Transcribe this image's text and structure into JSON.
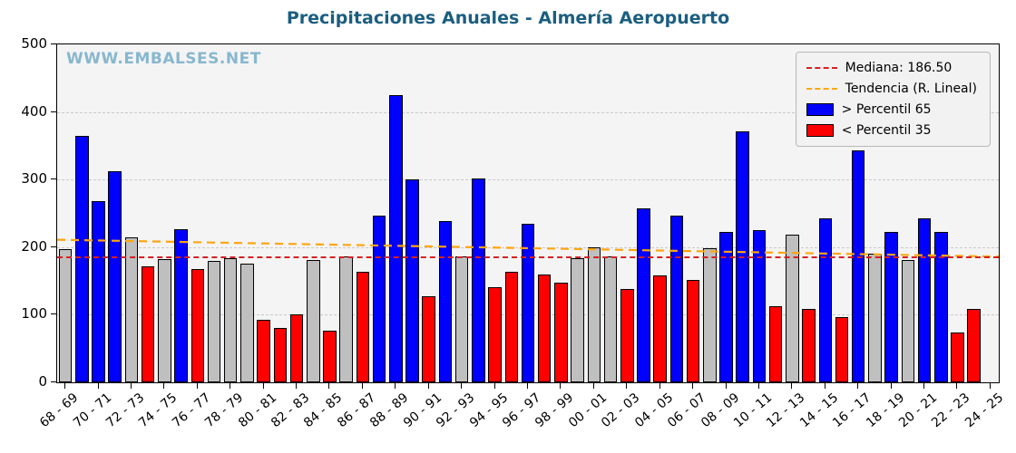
{
  "title": "Precipitaciones Anuales - Almería Aeropuerto",
  "watermark": "WWW.EMBALSES.NET",
  "legend": {
    "median_label": "Mediana: 186.50",
    "trend_label": "Tendencia (R. Lineal)",
    "above_label": " > Percentil 65",
    "below_label": "< Percentil 35"
  },
  "colors": {
    "above": "#0000ff",
    "below": "#ff0000",
    "mid": "#bfbfbf",
    "edge": "#000000",
    "median_line": "#d62020",
    "trend_line": "#ffa510",
    "title": "#1b5e80",
    "watermark": "#88b7ce",
    "plot_bg": "#f4f4f5",
    "grid": "#c9c9c9"
  },
  "chart_data": {
    "type": "bar",
    "title": "Precipitaciones Anuales - Almería Aeropuerto",
    "xlabel": "",
    "ylabel": "",
    "ylim": [
      0,
      500
    ],
    "yticks": [
      0,
      100,
      200,
      300,
      400,
      500
    ],
    "grid": true,
    "legend_position": "upper right",
    "median": 186.5,
    "trend": {
      "start": 211,
      "end": 186
    },
    "slots": 57,
    "x_tick_labels": [
      "68 - 69",
      "70 - 71",
      "72 - 73",
      "74 - 75",
      "76 - 77",
      "78 - 79",
      "80 - 81",
      "82 - 83",
      "84 - 85",
      "86 - 87",
      "88 - 89",
      "90 - 91",
      "92 - 93",
      "94 - 95",
      "96 - 97",
      "98 - 99",
      "00 - 01",
      "02 - 03",
      "04 - 05",
      "06 - 07",
      "08 - 09",
      "10 - 11",
      "12 - 13",
      "14 - 15",
      "16 - 17",
      "18 - 19",
      "20 - 21",
      "22 - 23",
      "24 - 25"
    ],
    "bars": [
      {
        "season": "68 - 69",
        "v": 197,
        "c": "mid"
      },
      {
        "season": "69 - 70",
        "v": 365,
        "c": "above"
      },
      {
        "season": "70 - 71",
        "v": 268,
        "c": "above"
      },
      {
        "season": "71 - 72",
        "v": 313,
        "c": "above"
      },
      {
        "season": "72 - 73",
        "v": 215,
        "c": "mid"
      },
      {
        "season": "73 - 74",
        "v": 172,
        "c": "below"
      },
      {
        "season": "74 - 75",
        "v": 182,
        "c": "mid"
      },
      {
        "season": "75 - 76",
        "v": 227,
        "c": "above"
      },
      {
        "season": "76 - 77",
        "v": 167,
        "c": "below"
      },
      {
        "season": "77 - 78",
        "v": 180,
        "c": "mid"
      },
      {
        "season": "78 - 79",
        "v": 184,
        "c": "mid"
      },
      {
        "season": "79 - 80",
        "v": 175,
        "c": "mid"
      },
      {
        "season": "80 - 81",
        "v": 93,
        "c": "below"
      },
      {
        "season": "81 - 82",
        "v": 81,
        "c": "below"
      },
      {
        "season": "82 - 83",
        "v": 101,
        "c": "below"
      },
      {
        "season": "83 - 84",
        "v": 181,
        "c": "mid"
      },
      {
        "season": "84 - 85",
        "v": 77,
        "c": "below"
      },
      {
        "season": "85 - 86",
        "v": 187,
        "c": "mid"
      },
      {
        "season": "86 - 87",
        "v": 163,
        "c": "below"
      },
      {
        "season": "87 - 88",
        "v": 247,
        "c": "above"
      },
      {
        "season": "88 - 89",
        "v": 425,
        "c": "above"
      },
      {
        "season": "89 - 90",
        "v": 300,
        "c": "above"
      },
      {
        "season": "90 - 91",
        "v": 128,
        "c": "below"
      },
      {
        "season": "91 - 92",
        "v": 239,
        "c": "above"
      },
      {
        "season": "92 - 93",
        "v": 187,
        "c": "mid"
      },
      {
        "season": "93 - 94",
        "v": 301,
        "c": "above"
      },
      {
        "season": "94 - 95",
        "v": 141,
        "c": "below"
      },
      {
        "season": "95 - 96",
        "v": 163,
        "c": "below"
      },
      {
        "season": "96 - 97",
        "v": 235,
        "c": "above"
      },
      {
        "season": "97 - 98",
        "v": 160,
        "c": "below"
      },
      {
        "season": "98 - 99",
        "v": 148,
        "c": "below"
      },
      {
        "season": "99 - 00",
        "v": 183,
        "c": "mid"
      },
      {
        "season": "00 - 01",
        "v": 200,
        "c": "mid"
      },
      {
        "season": "01 - 02",
        "v": 186,
        "c": "mid"
      },
      {
        "season": "02 - 03",
        "v": 138,
        "c": "below"
      },
      {
        "season": "03 - 04",
        "v": 258,
        "c": "above"
      },
      {
        "season": "04 - 05",
        "v": 158,
        "c": "below"
      },
      {
        "season": "05 - 06",
        "v": 247,
        "c": "above"
      },
      {
        "season": "06 - 07",
        "v": 152,
        "c": "below"
      },
      {
        "season": "07 - 08",
        "v": 198,
        "c": "mid"
      },
      {
        "season": "08 - 09",
        "v": 222,
        "c": "above"
      },
      {
        "season": "09 - 10",
        "v": 371,
        "c": "above"
      },
      {
        "season": "10 - 11",
        "v": 225,
        "c": "above"
      },
      {
        "season": "11 - 12",
        "v": 113,
        "c": "below"
      },
      {
        "season": "12 - 13",
        "v": 219,
        "c": "mid"
      },
      {
        "season": "13 - 14",
        "v": 109,
        "c": "below"
      },
      {
        "season": "14 - 15",
        "v": 242,
        "c": "above"
      },
      {
        "season": "15 - 16",
        "v": 96,
        "c": "below"
      },
      {
        "season": "16 - 17",
        "v": 343,
        "c": "above"
      },
      {
        "season": "17 - 18",
        "v": 190,
        "c": "mid"
      },
      {
        "season": "18 - 19",
        "v": 222,
        "c": "above"
      },
      {
        "season": "19 - 20",
        "v": 181,
        "c": "mid"
      },
      {
        "season": "20 - 21",
        "v": 243,
        "c": "above"
      },
      {
        "season": "21 - 22",
        "v": 222,
        "c": "above"
      },
      {
        "season": "22 - 23",
        "v": 74,
        "c": "below"
      },
      {
        "season": "23 - 24",
        "v": 109,
        "c": "below"
      }
    ]
  }
}
